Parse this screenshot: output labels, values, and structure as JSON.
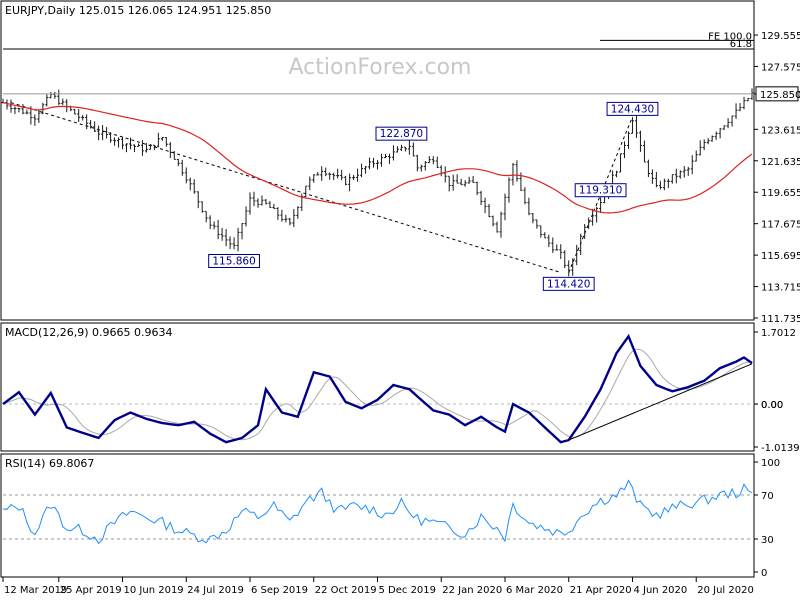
{
  "chart_data": [
    {
      "type": "candlestick",
      "panel": "price",
      "title": "EURJPY,Daily  125.015 126.065 124.951 125.850",
      "watermark": "ActionForex.com",
      "ylim": [
        111.735,
        130.5
      ],
      "y_ticks": [
        "129.555",
        "127.575",
        "125.850",
        "123.615",
        "121.635",
        "119.655",
        "117.675",
        "115.695",
        "113.715",
        "111.735"
      ],
      "last_price": "125.850",
      "fib_levels": [
        {
          "label": "FE 100.0",
          "value": 128.9
        },
        {
          "label": "61.8",
          "value": 128.8
        }
      ],
      "annotations": [
        {
          "label": "115.860",
          "date_index": 58,
          "value": 115.86
        },
        {
          "label": "122.870",
          "date_index": 100,
          "value": 122.87
        },
        {
          "label": "124.430",
          "date_index": 158,
          "value": 124.43
        },
        {
          "label": "119.310",
          "date_index": 150,
          "value": 119.31
        },
        {
          "label": "114.420",
          "date_index": 142,
          "value": 114.42
        }
      ],
      "trend_lines": [
        {
          "from": [
            2,
            125.3
          ],
          "to": [
            140,
            114.6
          ],
          "style": "dashed"
        },
        {
          "from": [
            142,
            114.6
          ],
          "to": [
            158,
            124.4
          ],
          "style": "dashed"
        }
      ],
      "moving_average_color": "#dd2222",
      "candle_color": "#1a1a1a",
      "series_anchors": [
        [
          0,
          125.3
        ],
        [
          8,
          124.4
        ],
        [
          12,
          125.8
        ],
        [
          18,
          124.6
        ],
        [
          24,
          123.4
        ],
        [
          30,
          122.8
        ],
        [
          36,
          122.3
        ],
        [
          40,
          123.1
        ],
        [
          46,
          120.6
        ],
        [
          52,
          117.6
        ],
        [
          58,
          116.2
        ],
        [
          62,
          119.2
        ],
        [
          66,
          118.9
        ],
        [
          72,
          117.6
        ],
        [
          76,
          120.1
        ],
        [
          80,
          121.1
        ],
        [
          86,
          120.3
        ],
        [
          92,
          121.4
        ],
        [
          98,
          122.1
        ],
        [
          102,
          122.6
        ],
        [
          104,
          121.2
        ],
        [
          108,
          121.8
        ],
        [
          112,
          120.2
        ],
        [
          118,
          120.2
        ],
        [
          124,
          117.3
        ],
        [
          128,
          121.4
        ],
        [
          132,
          118.2
        ],
        [
          136,
          116.7
        ],
        [
          140,
          115.7
        ],
        [
          142,
          114.6
        ],
        [
          146,
          117.6
        ],
        [
          150,
          119.1
        ],
        [
          154,
          121.1
        ],
        [
          158,
          124.3
        ],
        [
          161,
          121.5
        ],
        [
          164,
          119.9
        ],
        [
          168,
          120.6
        ],
        [
          172,
          121.1
        ],
        [
          176,
          122.8
        ],
        [
          180,
          123.7
        ],
        [
          184,
          124.7
        ],
        [
          188,
          125.85
        ]
      ]
    },
    {
      "type": "line",
      "panel": "macd",
      "title": "MACD(12,26,9) 0.9665 0.9634",
      "ylim": [
        -1.0139,
        1.7012
      ],
      "y_ticks": [
        "1.7012",
        "0.00",
        "0.00",
        "-1.0139"
      ],
      "series": [
        {
          "name": "MACD",
          "color": "#00008b",
          "anchors": [
            [
              0,
              0.0
            ],
            [
              4,
              0.28
            ],
            [
              8,
              -0.25
            ],
            [
              12,
              0.26
            ],
            [
              16,
              -0.55
            ],
            [
              20,
              -0.68
            ],
            [
              24,
              -0.8
            ],
            [
              28,
              -0.38
            ],
            [
              32,
              -0.2
            ],
            [
              36,
              -0.35
            ],
            [
              40,
              -0.45
            ],
            [
              44,
              -0.5
            ],
            [
              48,
              -0.42
            ],
            [
              52,
              -0.7
            ],
            [
              56,
              -0.9
            ],
            [
              60,
              -0.8
            ],
            [
              64,
              -0.5
            ],
            [
              66,
              0.35
            ],
            [
              70,
              -0.2
            ],
            [
              74,
              -0.3
            ],
            [
              78,
              0.75
            ],
            [
              82,
              0.65
            ],
            [
              86,
              0.05
            ],
            [
              90,
              -0.1
            ],
            [
              94,
              0.1
            ],
            [
              98,
              0.45
            ],
            [
              102,
              0.35
            ],
            [
              104,
              0.18
            ],
            [
              108,
              -0.15
            ],
            [
              112,
              -0.25
            ],
            [
              116,
              -0.5
            ],
            [
              120,
              -0.3
            ],
            [
              124,
              -0.55
            ],
            [
              126,
              -0.65
            ],
            [
              128,
              0.0
            ],
            [
              132,
              -0.2
            ],
            [
              136,
              -0.55
            ],
            [
              140,
              -0.9
            ],
            [
              142,
              -0.85
            ],
            [
              146,
              -0.3
            ],
            [
              150,
              0.35
            ],
            [
              154,
              1.2
            ],
            [
              157,
              1.6
            ],
            [
              160,
              0.9
            ],
            [
              164,
              0.45
            ],
            [
              168,
              0.3
            ],
            [
              172,
              0.4
            ],
            [
              176,
              0.55
            ],
            [
              180,
              0.85
            ],
            [
              184,
              1.0
            ],
            [
              186,
              1.1
            ],
            [
              188,
              0.9665
            ]
          ]
        },
        {
          "name": "Signal",
          "color": "#aaaaaa",
          "lag": 3
        }
      ],
      "trend_line": {
        "from": [
          142,
          -0.85
        ],
        "to": [
          188,
          0.95
        ]
      }
    },
    {
      "type": "line",
      "panel": "rsi",
      "title": "RSI(14) 69.8067",
      "ylim": [
        0,
        100
      ],
      "y_ticks": [
        "100",
        "70",
        "30",
        "0"
      ],
      "levels": [
        70,
        30
      ],
      "color": "#1e90ff",
      "anchors": [
        [
          0,
          55
        ],
        [
          4,
          60
        ],
        [
          8,
          35
        ],
        [
          12,
          62
        ],
        [
          16,
          40
        ],
        [
          20,
          38
        ],
        [
          24,
          30
        ],
        [
          28,
          45
        ],
        [
          32,
          55
        ],
        [
          36,
          50
        ],
        [
          40,
          45
        ],
        [
          44,
          38
        ],
        [
          48,
          33
        ],
        [
          52,
          30
        ],
        [
          56,
          38
        ],
        [
          60,
          55
        ],
        [
          64,
          50
        ],
        [
          68,
          60
        ],
        [
          72,
          45
        ],
        [
          76,
          64
        ],
        [
          80,
          72
        ],
        [
          84,
          55
        ],
        [
          88,
          60
        ],
        [
          92,
          58
        ],
        [
          96,
          52
        ],
        [
          100,
          62
        ],
        [
          102,
          55
        ],
        [
          104,
          48
        ],
        [
          108,
          45
        ],
        [
          112,
          40
        ],
        [
          116,
          35
        ],
        [
          120,
          50
        ],
        [
          124,
          40
        ],
        [
          126,
          32
        ],
        [
          128,
          62
        ],
        [
          132,
          45
        ],
        [
          136,
          40
        ],
        [
          140,
          35
        ],
        [
          142,
          38
        ],
        [
          146,
          55
        ],
        [
          150,
          65
        ],
        [
          154,
          70
        ],
        [
          157,
          80
        ],
        [
          160,
          60
        ],
        [
          164,
          52
        ],
        [
          168,
          58
        ],
        [
          172,
          62
        ],
        [
          176,
          65
        ],
        [
          180,
          70
        ],
        [
          184,
          72
        ],
        [
          186,
          75
        ],
        [
          188,
          69.8
        ]
      ]
    }
  ],
  "x_axis": {
    "labels": [
      {
        "text": "12 Mar 2019",
        "index": 0
      },
      {
        "text": "25 Apr 2019",
        "index": 14
      },
      {
        "text": "10 Jun 2019",
        "index": 30
      },
      {
        "text": "24 Jul 2019",
        "index": 46
      },
      {
        "text": "6 Sep 2019",
        "index": 62
      },
      {
        "text": "22 Oct 2019",
        "index": 78
      },
      {
        "text": "5 Dec 2019",
        "index": 94
      },
      {
        "text": "22 Jan 2020",
        "index": 110
      },
      {
        "text": "6 Mar 2020",
        "index": 126
      },
      {
        "text": "21 Apr 2020",
        "index": 142
      },
      {
        "text": "4 Jun 2020",
        "index": 158
      },
      {
        "text": "20 Jul 2020",
        "index": 174
      }
    ],
    "bar_count": 189
  }
}
